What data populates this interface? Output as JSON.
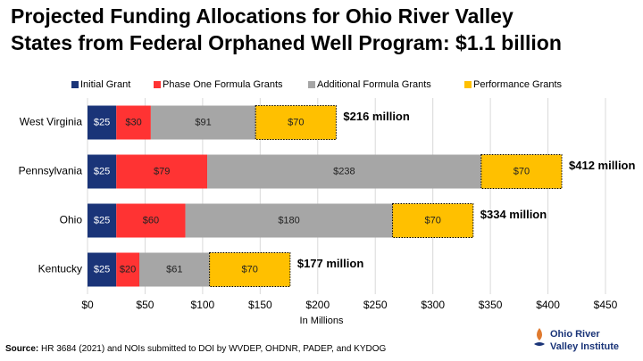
{
  "chart_data": {
    "type": "stacked_barh",
    "title": [
      "Projected Funding Allocations for Ohio River Valley",
      "States from Federal Orphaned Well Program: $1.1 billion"
    ],
    "categories": [
      "West Virginia",
      "Pennsylvania",
      "Ohio",
      "Kentucky"
    ],
    "series": [
      {
        "name": "Initial Grant",
        "color": "#1a3478",
        "values": [
          25,
          25,
          25,
          25
        ],
        "value_labels": [
          "$25",
          "$25",
          "$25",
          "$25"
        ]
      },
      {
        "name": "Phase One Formula Grants",
        "color": "#ff3333",
        "values": [
          30,
          79,
          60,
          20
        ],
        "value_labels": [
          "$30",
          "$79",
          "$60",
          "$20"
        ]
      },
      {
        "name": "Additional Formula Grants",
        "color": "#a6a6a6",
        "values": [
          91,
          238,
          180,
          61
        ],
        "value_labels": [
          "$91",
          "$238",
          "$180",
          "$61"
        ]
      },
      {
        "name": "Performance Grants",
        "color": "#ffc000",
        "values": [
          70,
          70,
          70,
          70
        ],
        "value_labels": [
          "$70",
          "$70",
          "$70",
          "$70"
        ]
      }
    ],
    "annotations": [
      "$216 million",
      "$412 million",
      "$334 million",
      "$177 million"
    ],
    "xlabel": "In Millions",
    "xlim": [
      0,
      450
    ],
    "xticks": [
      {
        "value": 0,
        "label": "$0"
      },
      {
        "value": 50,
        "label": "$50"
      },
      {
        "value": 100,
        "label": "$100"
      },
      {
        "value": 150,
        "label": "$150"
      },
      {
        "value": 200,
        "label": "$200"
      },
      {
        "value": 250,
        "label": "$250"
      },
      {
        "value": 300,
        "label": "$300"
      },
      {
        "value": 350,
        "label": "$350"
      },
      {
        "value": 400,
        "label": "$400"
      },
      {
        "value": 450,
        "label": "$450"
      }
    ],
    "grid": true,
    "legend": "top",
    "source": {
      "label": "Source:",
      "text": "HR 3684 (2021) and NOIs submitted to DOI by WVDEP, OHDNR, PADEP, and KYDOG"
    },
    "logo": [
      "Ohio River",
      "Valley Institute"
    ]
  }
}
